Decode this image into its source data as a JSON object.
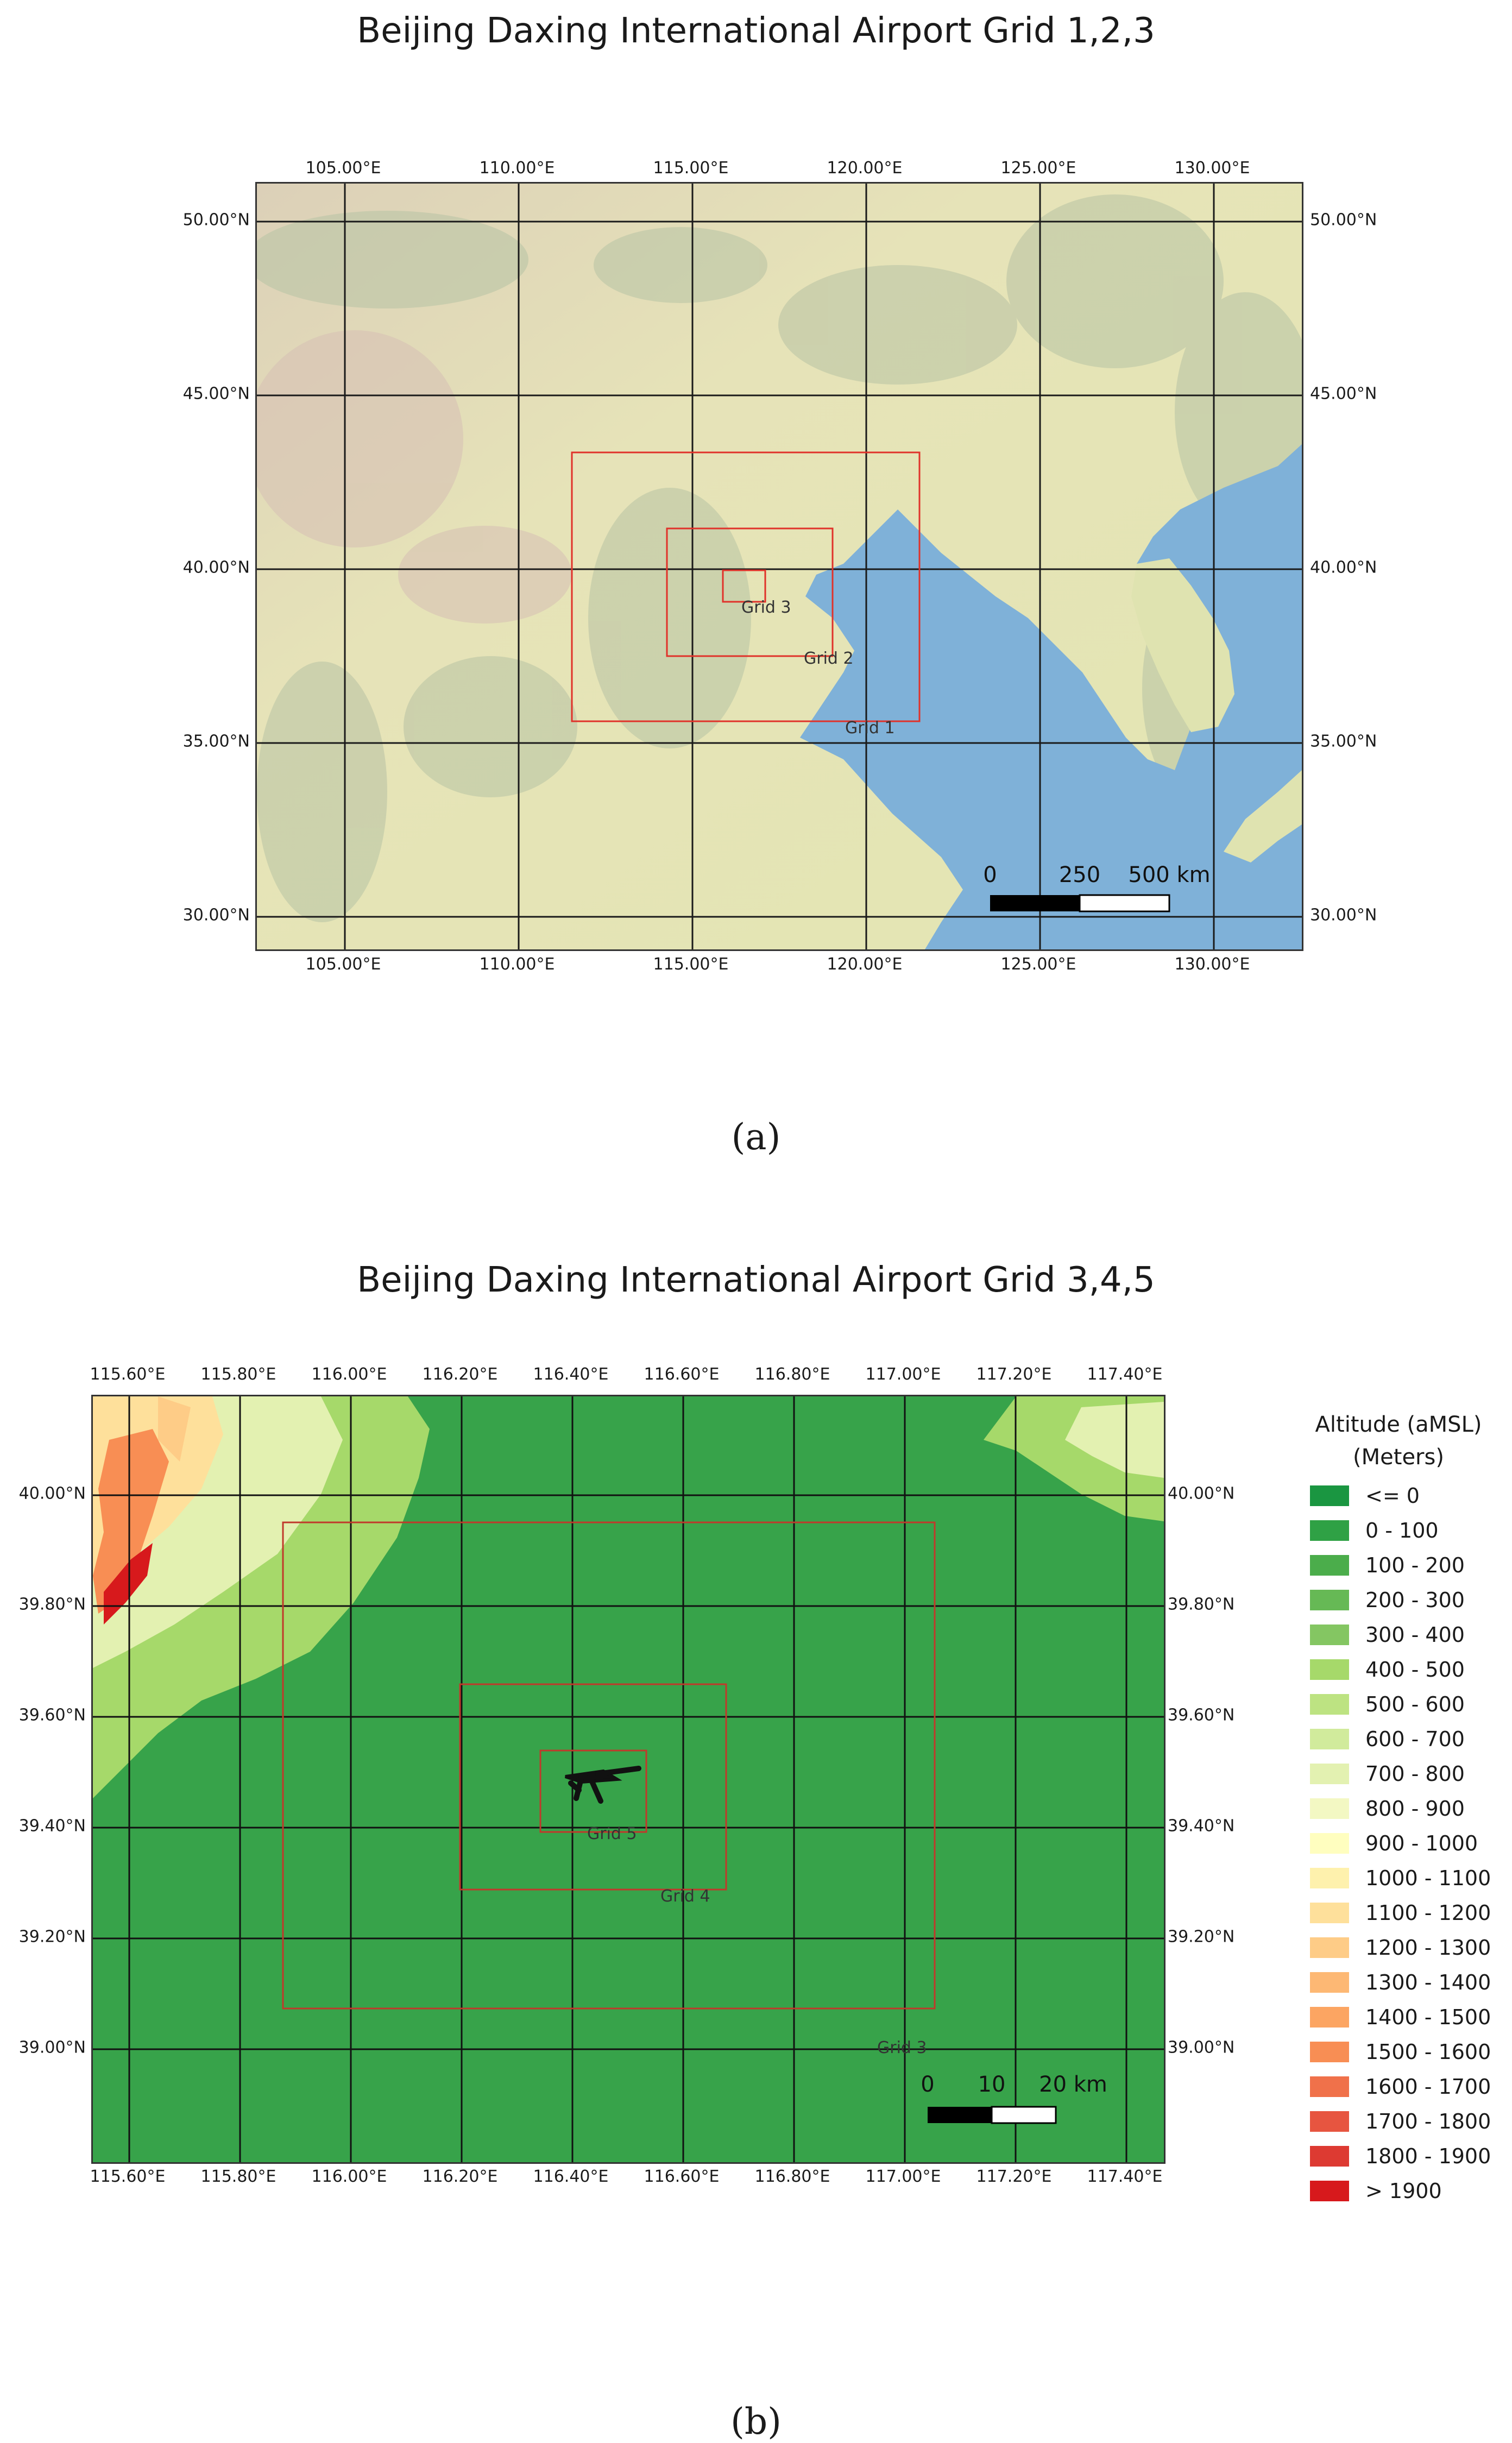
{
  "panel_a": {
    "title": "Beijing Daxing International Airport Grid 1,2,3",
    "caption": "(a)",
    "lon_ticks": [
      "105.00°E",
      "110.00°E",
      "115.00°E",
      "120.00°E",
      "125.00°E",
      "130.00°E"
    ],
    "lat_ticks": [
      "50.00°N",
      "45.00°N",
      "40.00°N",
      "35.00°N",
      "30.00°N"
    ],
    "grid_labels": [
      "Grid 1",
      "Grid 2",
      "Grid 3"
    ],
    "scale_labels": [
      "0",
      "250",
      "500 km"
    ],
    "colors": {
      "land": "#e6e2b0",
      "sea": "#7fb1d8",
      "grid_box": "#e0322a",
      "graticule": "#1a1a1a"
    }
  },
  "panel_b": {
    "title": "Beijing Daxing International Airport Grid 3,4,5",
    "caption": "(b)",
    "lon_ticks": [
      "115.60°E",
      "115.80°E",
      "116.00°E",
      "116.20°E",
      "116.40°E",
      "116.60°E",
      "116.80°E",
      "117.00°E",
      "117.20°E",
      "117.40°E"
    ],
    "lat_ticks": [
      "40.00°N",
      "39.80°N",
      "39.60°N",
      "39.40°N",
      "39.20°N",
      "39.00°N"
    ],
    "grid_labels": [
      "Grid 5",
      "Grid 4",
      "Grid 3"
    ],
    "scale_labels": [
      "0",
      "10",
      "20 km"
    ],
    "colors": {
      "lowland": "#37a34a",
      "grid_box": "#c0392b",
      "graticule": "#111111",
      "airport": "#111111"
    },
    "legend": {
      "title_line1": "Altitude (aMSL)",
      "title_line2": "(Meters)",
      "items": [
        {
          "label": "<= 0",
          "color": "#1a9641"
        },
        {
          "label": "0 - 100",
          "color": "#2fa145"
        },
        {
          "label": "100 - 200",
          "color": "#4bad4b"
        },
        {
          "label": "200 - 300",
          "color": "#66b955"
        },
        {
          "label": "300 - 400",
          "color": "#84c662"
        },
        {
          "label": "400 - 500",
          "color": "#a6d96a"
        },
        {
          "label": "500 - 600",
          "color": "#bde382"
        },
        {
          "label": "600 - 700",
          "color": "#d1eb9c"
        },
        {
          "label": "700 - 800",
          "color": "#e3f1b1"
        },
        {
          "label": "800 - 900",
          "color": "#f3f8c3"
        },
        {
          "label": "900 - 1000",
          "color": "#fffebf"
        },
        {
          "label": "1000 - 1100",
          "color": "#fef1ad"
        },
        {
          "label": "1100 - 1200",
          "color": "#fee09b"
        },
        {
          "label": "1200 - 1300",
          "color": "#fecc87"
        },
        {
          "label": "1300 - 1400",
          "color": "#fdb874"
        },
        {
          "label": "1400 - 1500",
          "color": "#fca562"
        },
        {
          "label": "1500 - 1600",
          "color": "#f88e54"
        },
        {
          "label": "1600 - 1700",
          "color": "#f0714a"
        },
        {
          "label": "1700 - 1800",
          "color": "#e75540"
        },
        {
          "label": "1800 - 1900",
          "color": "#dd3a32"
        },
        {
          "label": "> 1900",
          "color": "#d7191c"
        }
      ]
    }
  }
}
